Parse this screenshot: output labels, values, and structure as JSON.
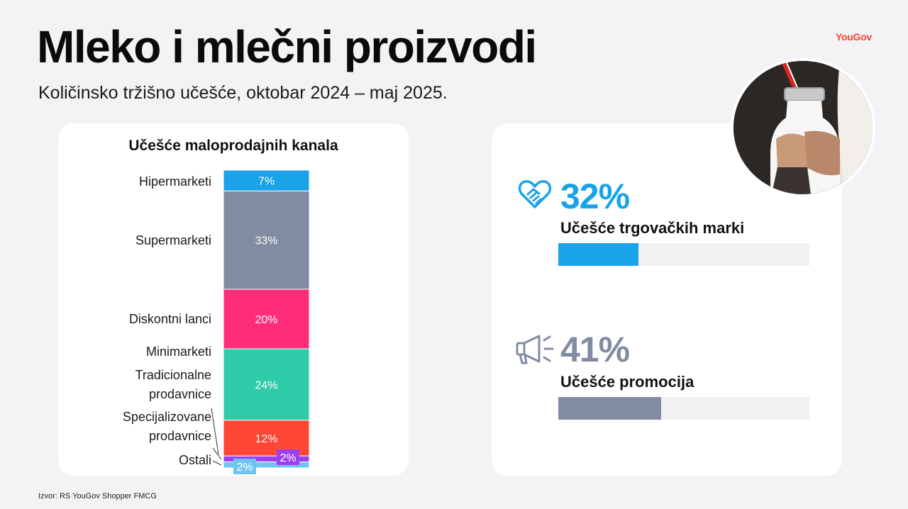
{
  "header": {
    "title": "Mleko i mlečni proizvodi",
    "subtitle": "Količinsko tržišno učešće, oktobar 2024 – maj 2025.",
    "logo": "YouGov"
  },
  "chart_data": {
    "type": "bar",
    "stacked": true,
    "title": "Učešće maloprodajnih kanala",
    "unit": "%",
    "categories": [
      "Hipermarketi",
      "Supermarketi",
      "Diskontni lanci",
      "Minimarketi",
      "Tradicionalne prodavnice",
      "Specijalizovane prodavnice",
      "Ostali"
    ],
    "series": [
      {
        "name": "Hipermarketi",
        "value": 7,
        "label": "7%",
        "color": "#1aa3e8"
      },
      {
        "name": "Supermarketi",
        "value": 33,
        "label": "33%",
        "color": "#818ca3"
      },
      {
        "name": "Diskontni lanci",
        "value": 20,
        "label": "20%",
        "color": "#ff2d78"
      },
      {
        "name": "Minimarketi + Tradicionalne prodavnice",
        "value": 24,
        "label": "24%",
        "color": "#2ecba8"
      },
      {
        "name": "Specijalizovane prodavnice",
        "value": 12,
        "label": "12%",
        "color": "#ff4533"
      },
      {
        "name": "Ostali (a)",
        "value": 2,
        "label": "2%",
        "color": "#9b3ff0"
      },
      {
        "name": "Ostali (b)",
        "value": 2,
        "label": "2%",
        "color": "#6ec6f0"
      }
    ],
    "legend_labels": [
      "Hipermarketi",
      "Supermarketi",
      "Diskontni lanci",
      "Minimarketi",
      "Tradicionalne prodavnice",
      "Specijalizovane prodavnice",
      "Ostali"
    ]
  },
  "kpis": [
    {
      "value": "32%",
      "fraction": 0.32,
      "label": "Učešće trgovačkih marki",
      "color": "#1aa3e8",
      "icon": "heart-handshake-icon"
    },
    {
      "value": "41%",
      "fraction": 0.41,
      "label": "Učešće promocija",
      "color": "#818ca3",
      "icon": "megaphone-icon"
    }
  ],
  "source": "Izvor: RS YouGov Shopper FMCG"
}
